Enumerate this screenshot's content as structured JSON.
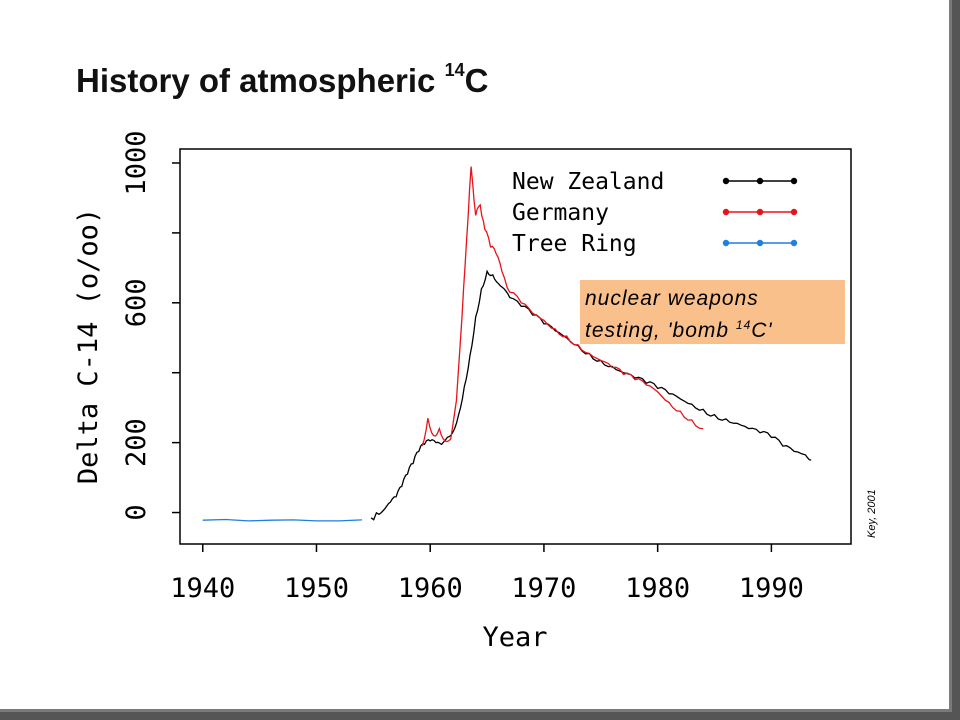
{
  "slide": {
    "title": "History of atmospheric",
    "title_superscript": "14",
    "title_suffix": "C"
  },
  "chart_data": {
    "type": "line",
    "xlabel": "Year",
    "ylabel": "Delta C-14 (o/oo)",
    "xlim": [
      1938,
      1997
    ],
    "ylim": [
      -90,
      1040
    ],
    "x_ticks": [
      1940,
      1950,
      1960,
      1970,
      1980,
      1990
    ],
    "y_ticks": [
      0,
      200,
      400,
      600,
      800,
      1000
    ],
    "y_tick_labels": [
      "0",
      "200",
      "",
      "600",
      "",
      "1000"
    ],
    "legend_position": "top-right",
    "annotation": {
      "line1": "nuclear weapons",
      "line2_prefix": "testing, 'bomb ",
      "line2_sup": "14",
      "line2_suffix": "C'",
      "background": "#f9c08c"
    },
    "credit": "Key, 2001",
    "series": [
      {
        "name": "New Zealand",
        "color": "#000000",
        "x": [
          1954.8,
          1955.5,
          1956,
          1956.5,
          1957,
          1957.5,
          1958,
          1958.5,
          1959,
          1959.5,
          1960,
          1960.5,
          1961,
          1961.5,
          1962,
          1962.5,
          1963,
          1963.5,
          1964,
          1964.5,
          1965,
          1965.5,
          1966,
          1966.5,
          1967,
          1968,
          1969,
          1970,
          1971,
          1972,
          1973,
          1974,
          1975,
          1976,
          1977,
          1978,
          1979,
          1980,
          1981,
          1982,
          1983,
          1984,
          1985,
          1986,
          1987,
          1988,
          1989,
          1990,
          1991,
          1992,
          1993,
          1993.5
        ],
        "y": [
          -15,
          -5,
          10,
          30,
          45,
          75,
          110,
          140,
          175,
          195,
          205,
          200,
          195,
          215,
          230,
          280,
          360,
          450,
          560,
          640,
          690,
          680,
          655,
          640,
          615,
          590,
          565,
          540,
          520,
          500,
          478,
          455,
          435,
          418,
          400,
          385,
          370,
          355,
          340,
          325,
          310,
          295,
          280,
          268,
          255,
          240,
          228,
          215,
          190,
          175,
          165,
          150
        ]
      },
      {
        "name": "Germany",
        "color": "#e8141b",
        "x": [
          1959.3,
          1959.8,
          1960.3,
          1960.8,
          1961.3,
          1961.8,
          1962.3,
          1962.8,
          1963.2,
          1963.6,
          1964,
          1964.4,
          1964.8,
          1965.3,
          1965.8,
          1966.3,
          1967,
          1968,
          1969,
          1970,
          1971,
          1972,
          1973,
          1974,
          1975,
          1976,
          1977,
          1978,
          1979,
          1980,
          1981,
          1982,
          1983,
          1984
        ],
        "y": [
          190,
          270,
          220,
          240,
          205,
          210,
          320,
          560,
          780,
          990,
          850,
          880,
          810,
          760,
          740,
          690,
          630,
          600,
          570,
          550,
          525,
          505,
          480,
          455,
          435,
          415,
          395,
          380,
          365,
          345,
          315,
          290,
          265,
          240
        ]
      },
      {
        "name": "Tree Ring",
        "color": "#1f7fe0",
        "x": [
          1940,
          1942,
          1944,
          1946,
          1948,
          1950,
          1952,
          1954
        ],
        "y": [
          -22,
          -20,
          -24,
          -22,
          -21,
          -24,
          -24,
          -21
        ]
      }
    ]
  }
}
